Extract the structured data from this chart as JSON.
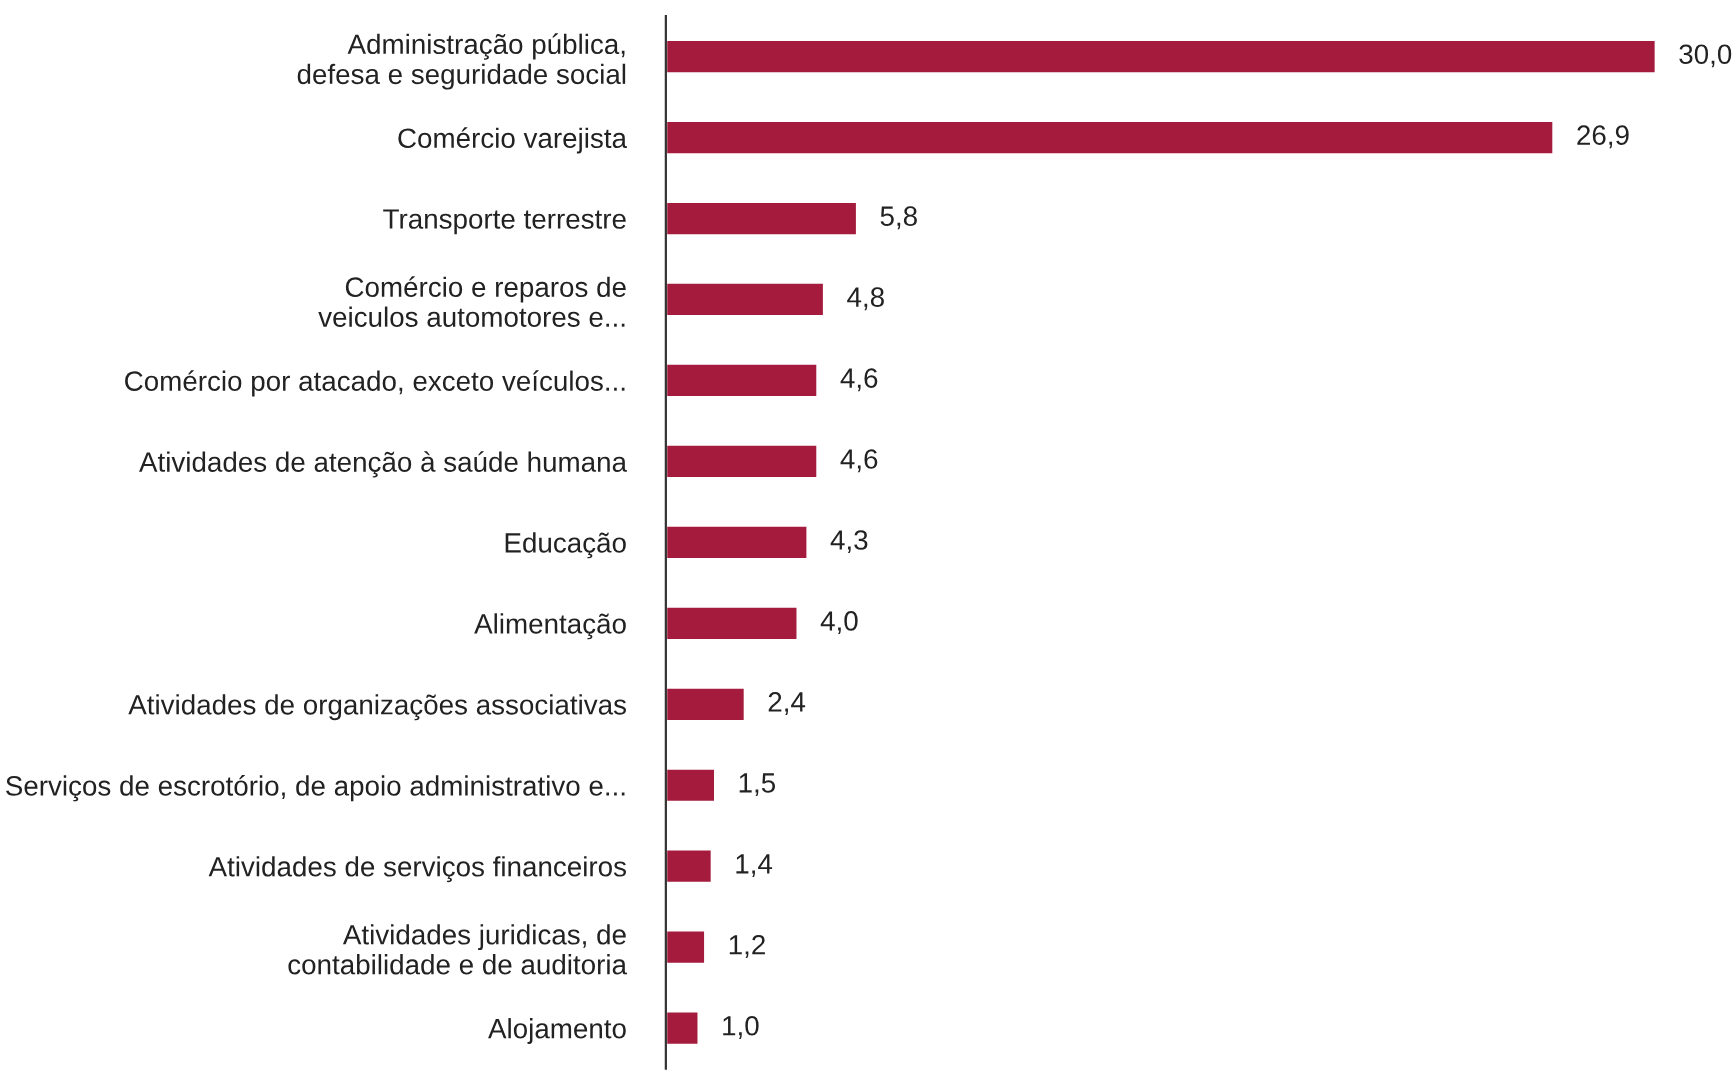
{
  "chart_data": {
    "type": "bar",
    "orientation": "horizontal",
    "categories": [
      "Administração pública,\ndefesa e seguridade social",
      "Comércio varejista",
      "Transporte terrestre",
      "Comércio e reparos de\nveiculos automotores e...",
      "Comércio por atacado, exceto veículos...",
      "Atividades de atenção à saúde humana",
      "Educação",
      "Alimentação",
      "Atividades de organizações associativas",
      "Serviços de escrotório, de apoio administrativo e...",
      "Atividades de serviços financeiros",
      "Atividades juridicas, de\ncontabilidade e de auditoria",
      "Alojamento"
    ],
    "values": [
      30.0,
      26.9,
      5.8,
      4.8,
      4.6,
      4.6,
      4.3,
      4.0,
      2.4,
      1.5,
      1.4,
      1.2,
      1.0
    ],
    "value_labels": [
      "30,0",
      "26,9",
      "5,8",
      "4,8",
      "4,6",
      "4,6",
      "4,3",
      "4,0",
      "2,4",
      "1,5",
      "1,4",
      "1,2",
      "1,0"
    ],
    "color": "#a51b3d",
    "grid": false,
    "legend": false
  }
}
